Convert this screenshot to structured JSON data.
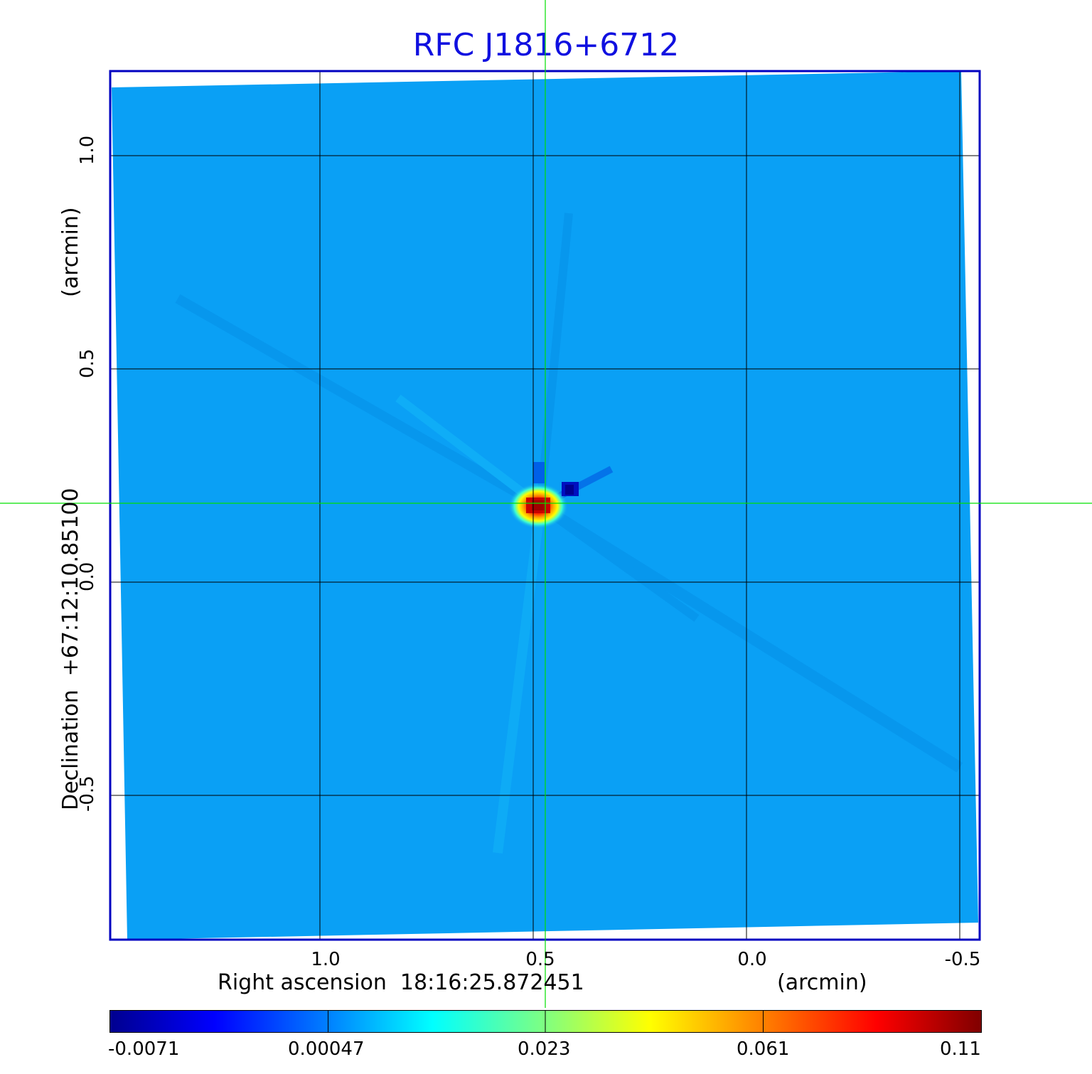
{
  "title": "RFC J1816+6712",
  "x_axis": {
    "label": "Right ascension  18:16:25.872451",
    "unit": "(arcmin)",
    "ticks": [
      "1.0",
      "0.5",
      "0.0",
      "-0.5"
    ]
  },
  "y_axis": {
    "label": "Declination  +67:12:10.85100",
    "unit": "(arcmin)",
    "ticks": [
      "1.0",
      "0.5",
      "0.0",
      "-0.5"
    ]
  },
  "colorbar": {
    "colormap": "jet",
    "ticks": [
      "-0.0071",
      "0.00047",
      "0.023",
      "0.061",
      "0.11"
    ]
  },
  "colors": {
    "title": "#1010e0",
    "frame": "#0000c0",
    "background_map": "#0aa0f5",
    "crosshair": "#00e000",
    "grid": "#000000"
  },
  "source": {
    "ra_offset_arcmin": 0.5,
    "dec_offset_arcmin": 0.18,
    "peak": 0.11
  }
}
